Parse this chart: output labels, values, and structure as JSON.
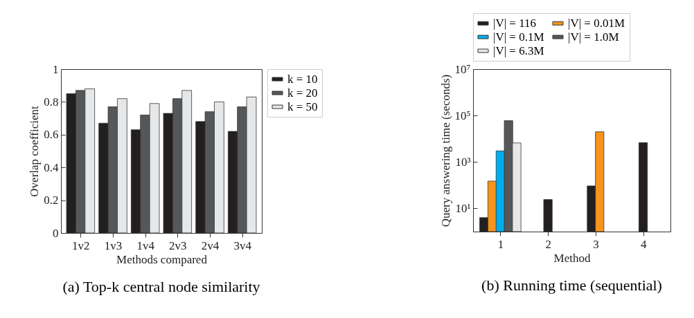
{
  "chart_data": [
    {
      "type": "bar",
      "title": "(a) Top-k central node similarity",
      "xlabel": "Methods compared",
      "ylabel": "Overlap coefficient",
      "categories": [
        "1v2",
        "1v3",
        "1v4",
        "2v3",
        "2v4",
        "3v4"
      ],
      "series": [
        {
          "name": "k = 10",
          "color": "#231f20",
          "values": [
            0.85,
            0.67,
            0.63,
            0.73,
            0.68,
            0.62
          ]
        },
        {
          "name": "k = 20",
          "color": "#555759",
          "values": [
            0.87,
            0.77,
            0.72,
            0.82,
            0.74,
            0.77
          ]
        },
        {
          "name": "k = 50",
          "color": "#e6e7e8",
          "values": [
            0.88,
            0.82,
            0.79,
            0.87,
            0.8,
            0.83
          ]
        }
      ],
      "ylim": [
        0,
        1
      ],
      "yticks": [
        0,
        0.2,
        0.4,
        0.6,
        0.8,
        1
      ],
      "legend": "top right"
    },
    {
      "type": "bar",
      "title": "(b) Running time (sequential)",
      "xlabel": "Method",
      "ylabel": "Query answering time (seconds)",
      "categories": [
        "1",
        "2",
        "3",
        "4"
      ],
      "series": [
        {
          "name": "|V| = 116",
          "color": "#231f20",
          "values": [
            4,
            24,
            93,
            6800
          ]
        },
        {
          "name": "|V| = 0.01M",
          "color": "#f7941d",
          "values": [
            150,
            null,
            20000,
            null
          ]
        },
        {
          "name": "|V| = 0.1M",
          "color": "#00aeef",
          "values": [
            3000,
            null,
            null,
            null
          ]
        },
        {
          "name": "|V| = 1.0M",
          "color": "#555759",
          "values": [
            60000,
            null,
            null,
            null
          ]
        },
        {
          "name": "|V| = 6.3M",
          "color": "#e6e7e8",
          "values": [
            6600,
            null,
            null,
            null
          ]
        }
      ],
      "log": true,
      "ylim": [
        1,
        10000000
      ],
      "yticks": [
        {
          "value": 10,
          "label": "10¹"
        },
        {
          "value": 1000,
          "label": "10³"
        },
        {
          "value": 100000,
          "label": "10⁵"
        },
        {
          "value": 10000000,
          "label": "10⁷"
        }
      ],
      "legend": "top"
    }
  ]
}
